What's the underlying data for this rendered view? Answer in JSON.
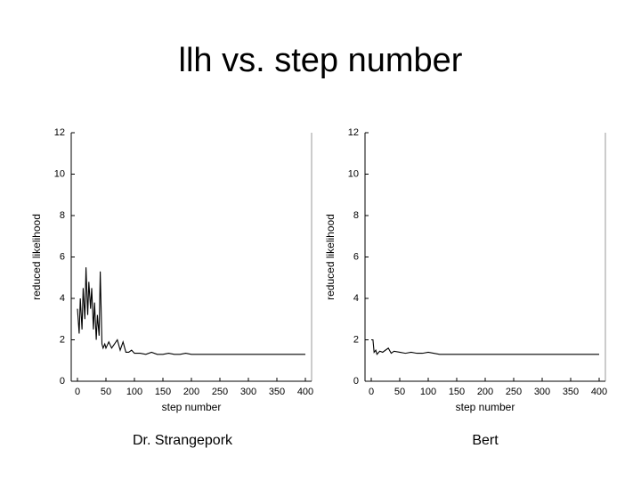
{
  "title": "llh vs. step number",
  "chart_data": [
    {
      "type": "line",
      "x_label": "step number",
      "y_label": "reduced likelihood",
      "caption": "Dr. Strangepork",
      "x": [
        0,
        3,
        5,
        8,
        10,
        13,
        15,
        18,
        20,
        23,
        25,
        28,
        30,
        33,
        35,
        38,
        40,
        43,
        45,
        48,
        50,
        55,
        60,
        65,
        70,
        75,
        80,
        85,
        90,
        95,
        100,
        110,
        120,
        130,
        140,
        150,
        160,
        170,
        180,
        190,
        200,
        220,
        240,
        260,
        280,
        300,
        320,
        340,
        360,
        380,
        400
      ],
      "series": [
        {
          "color": "#000000",
          "values": [
            3.5,
            2.3,
            4.0,
            2.5,
            4.5,
            3.0,
            5.5,
            3.2,
            4.8,
            3.5,
            4.5,
            2.5,
            3.8,
            2.0,
            3.2,
            2.2,
            5.3,
            1.8,
            1.6,
            1.8,
            1.6,
            1.9,
            1.6,
            1.8,
            2.0,
            1.5,
            1.9,
            1.4,
            1.4,
            1.5,
            1.35,
            1.35,
            1.3,
            1.4,
            1.3,
            1.3,
            1.35,
            1.3,
            1.3,
            1.35,
            1.3,
            1.3,
            1.3,
            1.3,
            1.3,
            1.3,
            1.3,
            1.3,
            1.3,
            1.3,
            1.3
          ]
        }
      ],
      "xlim": [
        0,
        400
      ],
      "xticks": [
        0,
        50,
        100,
        150,
        200,
        250,
        300,
        350,
        400
      ],
      "ylim": [
        0,
        12
      ],
      "yticks": [
        0,
        2,
        4,
        6,
        8,
        10,
        12
      ]
    },
    {
      "type": "line",
      "x_label": "step number",
      "y_label": "reduced likelihood",
      "caption": "Bert",
      "x": [
        0,
        3,
        5,
        8,
        10,
        15,
        20,
        25,
        30,
        35,
        40,
        50,
        60,
        70,
        80,
        90,
        100,
        120,
        140,
        160,
        180,
        200,
        240,
        280,
        320,
        360,
        400
      ],
      "series": [
        {
          "color": "#000000",
          "values": [
            2.0,
            2.0,
            1.4,
            1.5,
            1.3,
            1.45,
            1.4,
            1.5,
            1.6,
            1.35,
            1.45,
            1.4,
            1.35,
            1.4,
            1.35,
            1.35,
            1.4,
            1.3,
            1.3,
            1.3,
            1.3,
            1.3,
            1.3,
            1.3,
            1.3,
            1.3,
            1.3
          ]
        }
      ],
      "xlim": [
        0,
        400
      ],
      "xticks": [
        0,
        50,
        100,
        150,
        200,
        250,
        300,
        350,
        400
      ],
      "ylim": [
        0,
        12
      ],
      "yticks": [
        0,
        2,
        4,
        6,
        8,
        10,
        12
      ]
    }
  ]
}
